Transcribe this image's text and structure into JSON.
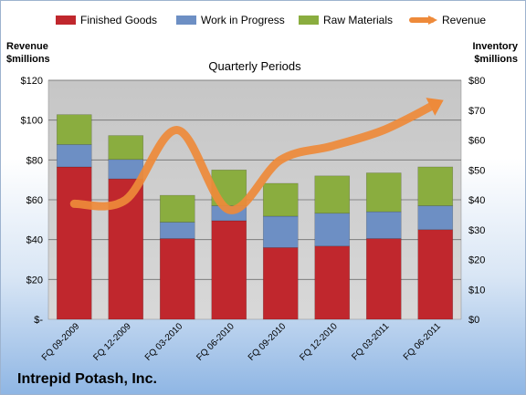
{
  "chart_data": {
    "type": "bar",
    "subtitle": "Quarterly Periods",
    "company": "Intrepid Potash, Inc.",
    "categories": [
      "FQ 09-2009",
      "FQ 12-2009",
      "FQ 03-2010",
      "FQ 06-2010",
      "FQ 09-2010",
      "FQ 12-2010",
      "FQ 03-2011",
      "FQ 06-2011"
    ],
    "left_axis": {
      "title_line1": "Revenue",
      "title_line2": "$millions",
      "min": 0,
      "max": 120,
      "step": 20,
      "ticks": [
        "$-",
        "$20",
        "$40",
        "$60",
        "$80",
        "$100",
        "$120"
      ]
    },
    "right_axis": {
      "title_line1": "Inventory",
      "title_line2": "$millions",
      "min": 0,
      "max": 80,
      "step": 10,
      "ticks": [
        "$0",
        "$10",
        "$20",
        "$30",
        "$40",
        "$50",
        "$60",
        "$70",
        "$80"
      ]
    },
    "series": [
      {
        "name": "Finished Goods",
        "axis": "right",
        "stack": true,
        "color": "#c0272d",
        "values": [
          51,
          47,
          27,
          33,
          24,
          24.5,
          27,
          30
        ]
      },
      {
        "name": "Work in Progress",
        "axis": "right",
        "stack": true,
        "color": "#6d8fc4",
        "values": [
          7.5,
          6.5,
          5.5,
          5,
          10.5,
          11,
          9,
          8
        ]
      },
      {
        "name": "Raw Materials",
        "axis": "right",
        "stack": true,
        "color": "#8aad3f",
        "values": [
          10,
          8,
          9,
          12,
          11,
          12.5,
          13,
          13
        ]
      },
      {
        "name": "Revenue",
        "axis": "left",
        "type": "line",
        "color": "#ee8a3a",
        "values": [
          58,
          60,
          95,
          55,
          80,
          87,
          95,
          108
        ]
      }
    ],
    "grid": true,
    "legend": "top"
  }
}
